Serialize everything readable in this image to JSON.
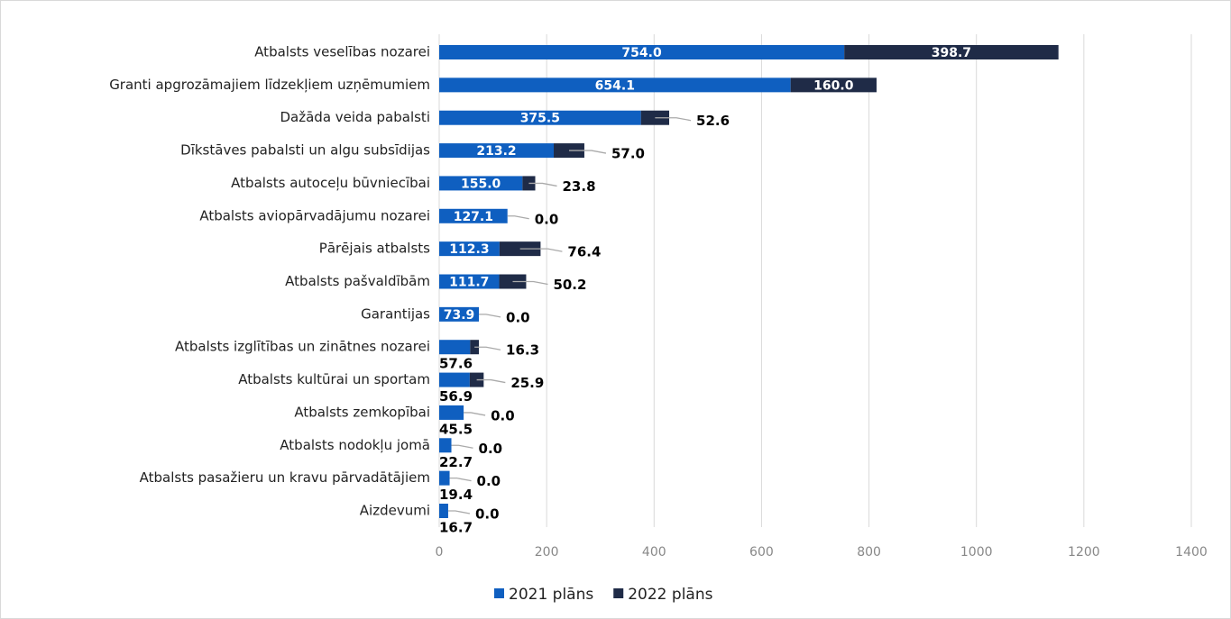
{
  "chart_data": {
    "type": "stacked-bar-horizontal",
    "categories": [
      "Atbalsts veselības nozarei",
      "Granti apgrozāmajiem līdzekļiem uzņēmumiem",
      "Dažāda veida pabalsti",
      "Dīkstāves pabalsti un algu subsīdijas",
      "Atbalsts autoceļu būvniecībai",
      "Atbalsts aviopārvadājumu nozarei",
      "Pārējais atbalsts",
      "Atbalsts pašvaldībām",
      "Garantijas",
      "Atbalsts izglītības un zinātnes nozarei",
      "Atbalsts kultūrai un sportam",
      "Atbalsts zemkopībai",
      "Atbalsts nodokļu jomā",
      "Atbalsts pasažieru un kravu pārvadātājiem",
      "Aizdevumi"
    ],
    "series": [
      {
        "name": "2021 plāns",
        "color": "#0f5fc0",
        "values": [
          754.0,
          654.1,
          375.5,
          213.2,
          155.0,
          127.1,
          112.3,
          111.7,
          73.9,
          57.6,
          56.9,
          45.5,
          22.7,
          19.4,
          16.7
        ],
        "value_labels": [
          "754.0",
          "654.1",
          "375.5",
          "213.2",
          "155.0",
          "127.1",
          "112.3",
          "111.7",
          "73.9",
          "57.6",
          "56.9",
          "45.5",
          "22.7",
          "19.4",
          "16.7"
        ]
      },
      {
        "name": "2022 plāns",
        "color": "#1f2b47",
        "values": [
          398.7,
          160.0,
          52.6,
          57.0,
          23.8,
          0.0,
          76.4,
          50.2,
          0.0,
          16.3,
          25.9,
          0.0,
          0.0,
          0.0,
          0.0
        ],
        "value_labels": [
          "398.7",
          "160.0",
          "52.6",
          "57.0",
          "23.8",
          "0.0",
          "76.4",
          "50.2",
          "0.0",
          "16.3",
          "25.9",
          "0.0",
          "0.0",
          "0.0",
          "0.0"
        ]
      }
    ],
    "xlim": [
      0,
      1400
    ],
    "xticks": [
      0,
      200,
      400,
      600,
      800,
      1000,
      1200,
      1400
    ],
    "grid": true,
    "legend": "bottom"
  }
}
